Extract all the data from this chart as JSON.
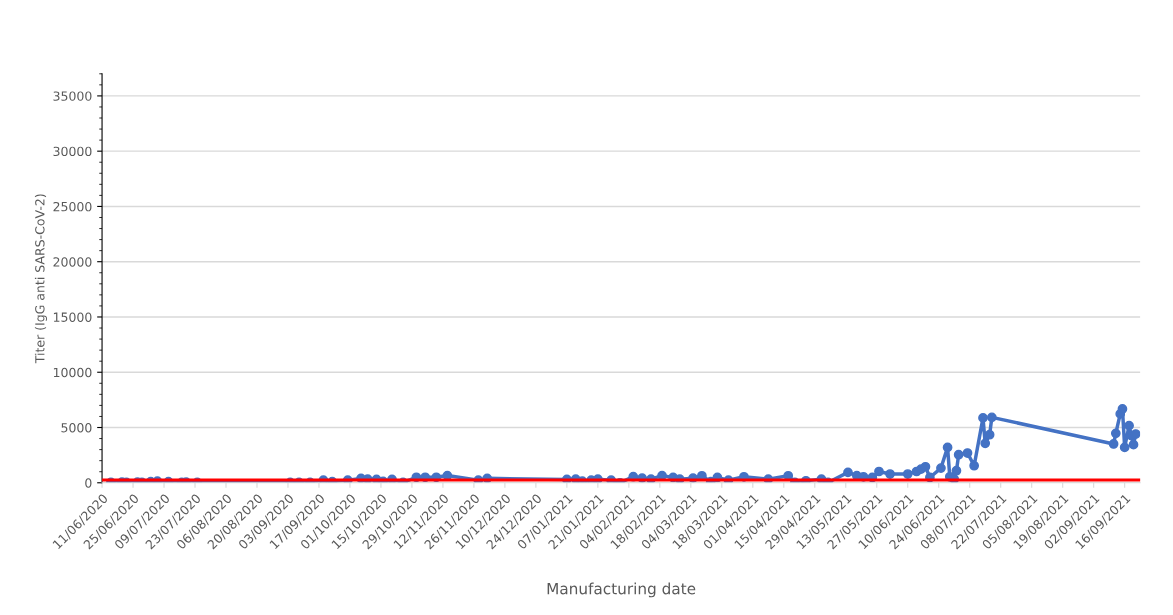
{
  "chart_data": {
    "type": "line",
    "xlabel": "Manufacturing date",
    "ylabel": "Titer (IgG anti SARS-CoV-2)",
    "x": [
      "2020-06-15",
      "2020-06-20",
      "2020-06-22",
      "2020-06-27",
      "2020-06-29",
      "2020-07-03",
      "2020-07-06",
      "2020-07-11",
      "2020-07-17",
      "2020-07-19",
      "2020-07-24",
      "2020-09-04",
      "2020-09-08",
      "2020-09-13",
      "2020-09-19",
      "2020-09-23",
      "2020-09-30",
      "2020-10-06",
      "2020-10-09",
      "2020-10-13",
      "2020-10-16",
      "2020-10-20",
      "2020-10-25",
      "2020-10-31",
      "2020-11-04",
      "2020-11-09",
      "2020-11-14",
      "2020-11-28",
      "2020-12-02",
      "2021-01-07",
      "2021-01-11",
      "2021-01-14",
      "2021-01-18",
      "2021-01-21",
      "2021-01-27",
      "2021-01-31",
      "2021-02-06",
      "2021-02-10",
      "2021-02-14",
      "2021-02-19",
      "2021-02-24",
      "2021-02-27",
      "2021-03-05",
      "2021-03-09",
      "2021-03-13",
      "2021-03-16",
      "2021-03-21",
      "2021-03-28",
      "2021-04-08",
      "2021-04-17",
      "2021-04-20",
      "2021-04-25",
      "2021-05-02",
      "2021-05-05",
      "2021-05-14",
      "2021-05-18",
      "2021-05-21",
      "2021-05-25",
      "2021-05-28",
      "2021-06-02",
      "2021-06-10",
      "2021-06-14",
      "2021-06-16",
      "2021-06-18",
      "2021-06-20",
      "2021-06-25",
      "2021-06-28",
      "2021-06-29",
      "2021-07-01",
      "2021-07-02",
      "2021-07-03",
      "2021-07-07",
      "2021-07-10",
      "2021-07-14",
      "2021-07-15",
      "2021-07-17",
      "2021-07-18",
      "2021-09-11",
      "2021-09-12",
      "2021-09-14",
      "2021-09-15",
      "2021-09-16",
      "2021-09-18",
      "2021-09-19",
      "2021-09-20",
      "2021-09-21"
    ],
    "series": [
      {
        "color": "#4472c4",
        "values": [
          30,
          60,
          30,
          60,
          30,
          100,
          150,
          100,
          30,
          60,
          30,
          30,
          30,
          30,
          240,
          100,
          240,
          400,
          330,
          300,
          120,
          300,
          30,
          500,
          500,
          500,
          650,
          240,
          400,
          300,
          330,
          150,
          240,
          330,
          240,
          0,
          550,
          420,
          330,
          650,
          480,
          330,
          420,
          630,
          100,
          480,
          240,
          540,
          330,
          630,
          30,
          180,
          330,
          30,
          940,
          640,
          540,
          480,
          1020,
          790,
          790,
          1020,
          1240,
          1450,
          480,
          1330,
          3200,
          540,
          330,
          1090,
          2540,
          2690,
          1540,
          5870,
          3570,
          4350,
          5920,
          3510,
          4470,
          6230,
          6680,
          3200,
          5170,
          4260,
          3450,
          4410
        ]
      }
    ],
    "xlim": [
      "2020-06-11",
      "2021-09-23"
    ],
    "xticks": [
      {
        "value": "2020-06-11",
        "label": "11/06/2020"
      },
      {
        "value": "2020-06-25",
        "label": "25/06/2020"
      },
      {
        "value": "2020-07-09",
        "label": "09/07/2020"
      },
      {
        "value": "2020-07-23",
        "label": "23/07/2020"
      },
      {
        "value": "2020-08-06",
        "label": "06/08/2020"
      },
      {
        "value": "2020-08-20",
        "label": "20/08/2020"
      },
      {
        "value": "2020-09-03",
        "label": "03/09/2020"
      },
      {
        "value": "2020-09-17",
        "label": "17/09/2020"
      },
      {
        "value": "2020-10-01",
        "label": "01/10/2020"
      },
      {
        "value": "2020-10-15",
        "label": "15/10/2020"
      },
      {
        "value": "2020-10-29",
        "label": "29/10/2020"
      },
      {
        "value": "2020-11-12",
        "label": "12/11/2020"
      },
      {
        "value": "2020-11-26",
        "label": "26/11/2020"
      },
      {
        "value": "2020-12-10",
        "label": "10/12/2020"
      },
      {
        "value": "2020-12-24",
        "label": "24/12/2020"
      },
      {
        "value": "2021-01-07",
        "label": "07/01/2021"
      },
      {
        "value": "2021-01-21",
        "label": "21/01/2021"
      },
      {
        "value": "2021-02-04",
        "label": "04/02/2021"
      },
      {
        "value": "2021-02-18",
        "label": "18/02/2021"
      },
      {
        "value": "2021-03-04",
        "label": "04/03/2021"
      },
      {
        "value": "2021-03-18",
        "label": "18/03/2021"
      },
      {
        "value": "2021-04-01",
        "label": "01/04/2021"
      },
      {
        "value": "2021-04-15",
        "label": "15/04/2021"
      },
      {
        "value": "2021-04-29",
        "label": "29/04/2021"
      },
      {
        "value": "2021-05-13",
        "label": "13/05/2021"
      },
      {
        "value": "2021-05-27",
        "label": "27/05/2021"
      },
      {
        "value": "2021-06-10",
        "label": "10/06/2021"
      },
      {
        "value": "2021-06-24",
        "label": "24/06/2021"
      },
      {
        "value": "2021-07-08",
        "label": "08/07/2021"
      },
      {
        "value": "2021-07-22",
        "label": "22/07/2021"
      },
      {
        "value": "2021-08-05",
        "label": "05/08/2021"
      },
      {
        "value": "2021-08-19",
        "label": "19/08/2021"
      },
      {
        "value": "2021-09-02",
        "label": "02/09/2021"
      },
      {
        "value": "2021-09-16",
        "label": "16/09/2021"
      }
    ],
    "ylim": [
      0,
      37000
    ],
    "yticks": [
      0,
      5000,
      10000,
      15000,
      20000,
      25000,
      30000,
      35000
    ],
    "ref_lines": [
      {
        "axis": "y",
        "value": 250,
        "color": "#ff0000"
      }
    ],
    "grid": "y",
    "marker": "circle",
    "line_style": "solid"
  }
}
